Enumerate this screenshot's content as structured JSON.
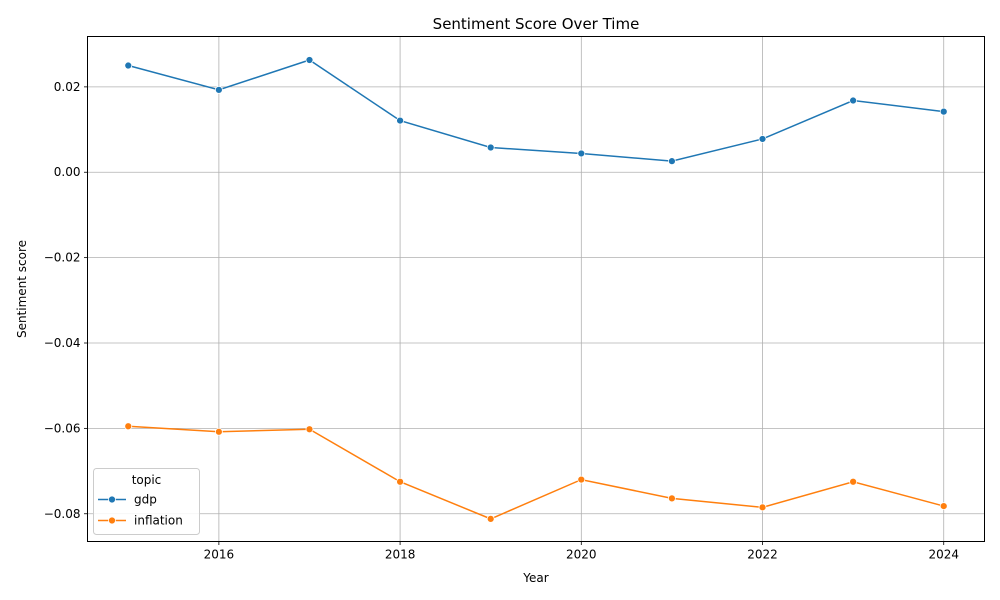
{
  "chart_data": {
    "type": "line",
    "title": "Sentiment Score Over Time",
    "xlabel": "Year",
    "ylabel": "Sentiment score",
    "x": [
      2015,
      2016,
      2017,
      2018,
      2019,
      2020,
      2021,
      2022,
      2023,
      2024
    ],
    "xlim": [
      2014.55,
      2024.45
    ],
    "ylim": [
      -0.0865,
      0.0318
    ],
    "xticks": [
      2016,
      2018,
      2020,
      2022,
      2024
    ],
    "xtick_labels": [
      "2016",
      "2018",
      "2020",
      "2022",
      "2024"
    ],
    "yticks": [
      0.02,
      0.0,
      -0.02,
      -0.04,
      -0.06,
      -0.08
    ],
    "ytick_labels": [
      "0.02",
      "0.00",
      "−0.02",
      "−0.04",
      "−0.06",
      "−0.08"
    ],
    "grid": true,
    "legend": {
      "title": "topic",
      "placement": "lower-left"
    },
    "series": [
      {
        "name": "gdp",
        "color": "#1f77b4",
        "values": [
          0.025,
          0.0193,
          0.0263,
          0.0121,
          0.0058,
          0.0044,
          0.0026,
          0.0078,
          0.0168,
          0.0142
        ]
      },
      {
        "name": "inflation",
        "color": "#ff7f0e",
        "values": [
          -0.0595,
          -0.0608,
          -0.0602,
          -0.0725,
          -0.0812,
          -0.072,
          -0.0764,
          -0.0785,
          -0.0725,
          -0.0782
        ]
      }
    ]
  }
}
